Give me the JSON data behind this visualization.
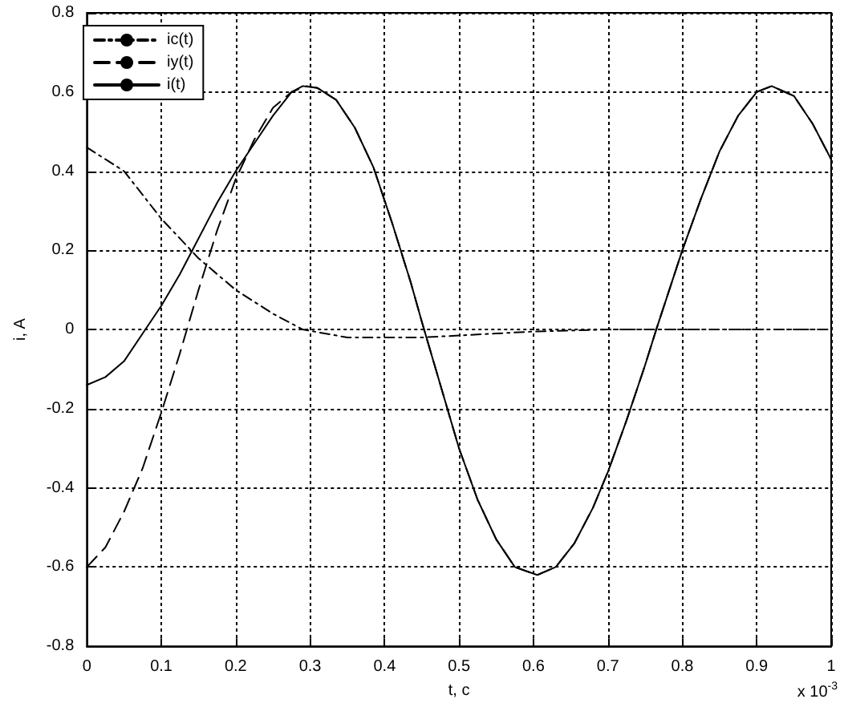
{
  "chart_data": {
    "type": "line",
    "xlabel": "t, c",
    "ylabel": "i, A",
    "annotations": [
      "x 10$^{-3}$"
    ],
    "xlim": [
      0,
      1
    ],
    "xticks": [
      0,
      0.1,
      0.2,
      0.3,
      0.4,
      0.5,
      0.6,
      0.7,
      0.8,
      0.9,
      1
    ],
    "ylim": [
      -0.8,
      0.8
    ],
    "yticks": [
      -0.8,
      -0.6,
      -0.4,
      -0.2,
      0,
      0.2,
      0.4,
      0.6,
      0.8
    ],
    "grid": true,
    "legend": "top left",
    "marker": "none",
    "series": [
      {
        "name": "ic(t)",
        "color": "#000000",
        "line_style": "dashdot",
        "x": [
          0,
          0.05,
          0.1,
          0.15,
          0.2,
          0.25,
          0.29,
          0.35,
          0.4,
          0.45,
          0.5,
          0.55,
          0.6,
          0.7,
          0.8,
          0.9,
          1
        ],
        "values": [
          0.46,
          0.4,
          0.28,
          0.18,
          0.1,
          0.04,
          0,
          -0.02,
          -0.02,
          -0.02,
          -0.015,
          -0.01,
          -0.005,
          0,
          0,
          0,
          0
        ]
      },
      {
        "name": "iy(t)",
        "color": "#000000",
        "line_style": "dashed",
        "x": [
          0,
          0.025,
          0.05,
          0.075,
          0.1,
          0.125,
          0.15,
          0.175,
          0.2,
          0.225,
          0.25,
          0.275,
          0.295,
          0.31,
          0.335,
          0.36,
          0.385,
          0.41,
          0.435,
          0.45,
          0.475,
          0.5,
          0.525,
          0.55,
          0.575,
          0.605,
          0.63,
          0.655,
          0.68,
          0.7,
          0.725,
          0.75,
          0.765,
          0.8,
          0.825,
          0.85,
          0.875,
          0.9,
          0.92,
          0.95,
          0.975,
          1
        ],
        "values": [
          -0.6,
          -0.55,
          -0.46,
          -0.35,
          -0.21,
          -0.06,
          0.1,
          0.25,
          0.38,
          0.48,
          0.56,
          0.6,
          0.615,
          0.61,
          0.58,
          0.51,
          0.41,
          0.27,
          0.12,
          0.02,
          -0.14,
          -0.3,
          -0.43,
          -0.53,
          -0.6,
          -0.62,
          -0.6,
          -0.54,
          -0.45,
          -0.36,
          -0.23,
          -0.09,
          0,
          0.2,
          0.33,
          0.45,
          0.54,
          0.6,
          0.615,
          0.59,
          0.52,
          0.43
        ]
      },
      {
        "name": "i(t)",
        "color": "#000000",
        "line_style": "solid",
        "x": [
          0,
          0.025,
          0.05,
          0.075,
          0.1,
          0.125,
          0.15,
          0.175,
          0.2,
          0.225,
          0.25,
          0.275,
          0.29,
          0.31,
          0.335,
          0.36,
          0.385,
          0.41,
          0.435,
          0.45,
          0.475,
          0.5,
          0.525,
          0.55,
          0.575,
          0.605,
          0.63,
          0.655,
          0.68,
          0.7,
          0.725,
          0.75,
          0.765,
          0.8,
          0.825,
          0.85,
          0.875,
          0.9,
          0.92,
          0.95,
          0.975,
          1
        ],
        "values": [
          -0.14,
          -0.12,
          -0.08,
          -0.01,
          0.06,
          0.14,
          0.23,
          0.32,
          0.4,
          0.47,
          0.54,
          0.6,
          0.615,
          0.61,
          0.58,
          0.51,
          0.41,
          0.27,
          0.12,
          0.02,
          -0.14,
          -0.3,
          -0.43,
          -0.53,
          -0.6,
          -0.62,
          -0.6,
          -0.54,
          -0.45,
          -0.36,
          -0.23,
          -0.09,
          0,
          0.2,
          0.33,
          0.45,
          0.54,
          0.6,
          0.615,
          0.59,
          0.52,
          0.43
        ]
      }
    ]
  }
}
